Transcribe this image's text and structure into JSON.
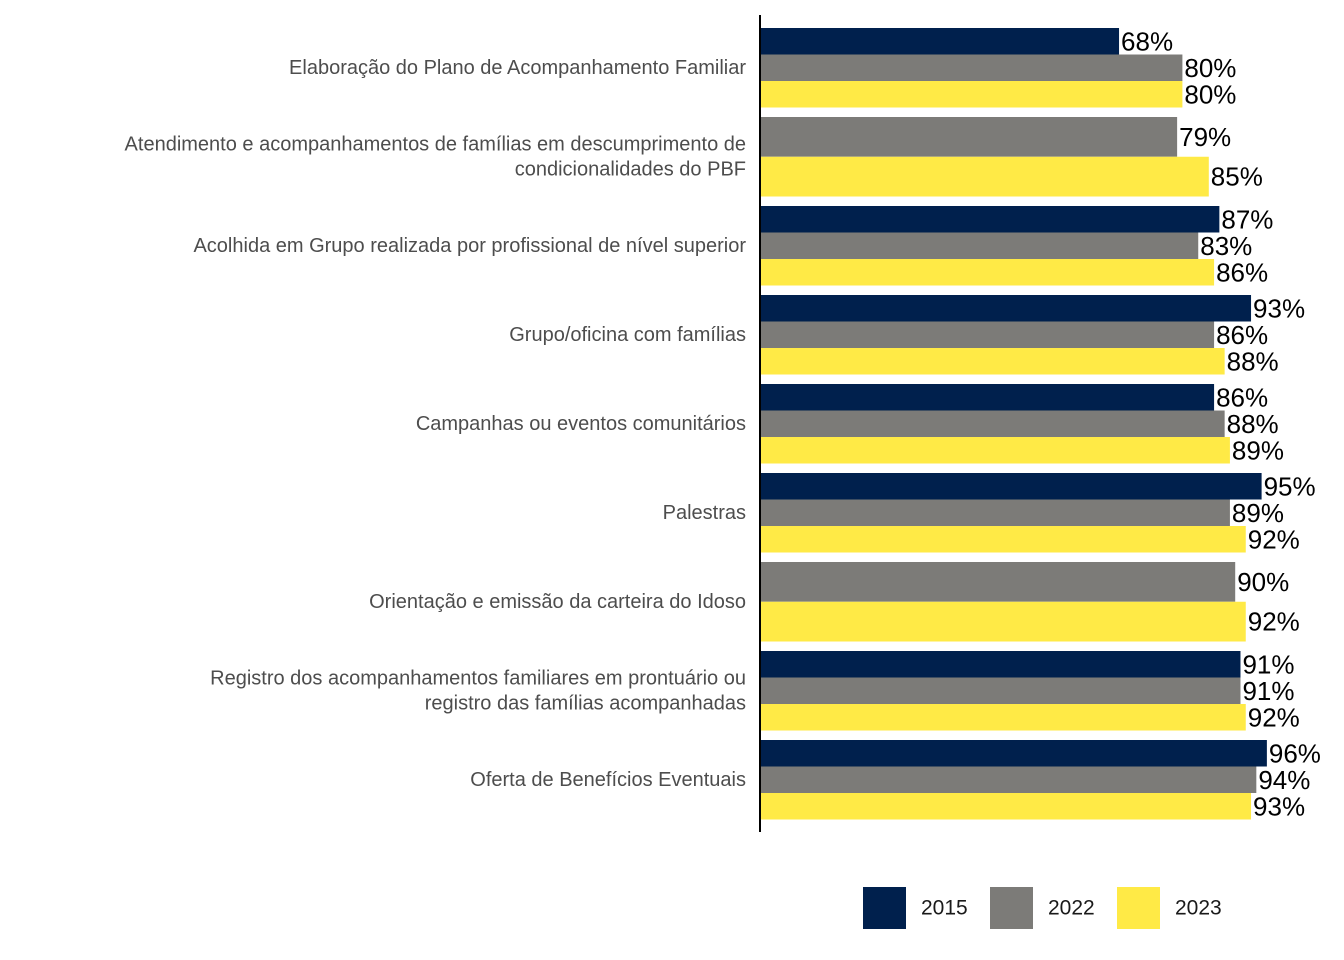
{
  "chart_data": {
    "type": "bar",
    "orientation": "horizontal",
    "categories": [
      [
        "Elaboração do Plano de Acompanhamento Familiar"
      ],
      [
        "Atendimento e acompanhamentos de famílias em descumprimento de",
        "condicionalidades do PBF"
      ],
      [
        "Acolhida em Grupo realizada por profissional de nível superior"
      ],
      [
        "Grupo/oficina com famílias"
      ],
      [
        "Campanhas ou eventos comunitários"
      ],
      [
        "Palestras"
      ],
      [
        "Orientação e emissão da carteira do Idoso"
      ],
      [
        "Registro dos acompanhamentos familiares em prontuário ou",
        "registro das famílias acompanhadas"
      ],
      [
        "Oferta de Benefícios Eventuais"
      ]
    ],
    "series": [
      {
        "name": "2015",
        "color": "#00204d",
        "values": [
          68,
          null,
          87,
          93,
          86,
          95,
          null,
          91,
          96
        ]
      },
      {
        "name": "2022",
        "color": "#7c7b78",
        "values": [
          80,
          79,
          83,
          86,
          88,
          89,
          90,
          91,
          94
        ]
      },
      {
        "name": "2023",
        "color": "#ffea46",
        "values": [
          80,
          85,
          86,
          88,
          89,
          92,
          92,
          92,
          93
        ]
      }
    ],
    "value_suffix": "%",
    "xlim": [
      0,
      100
    ],
    "grid": false,
    "legend_position": "bottom-right"
  }
}
